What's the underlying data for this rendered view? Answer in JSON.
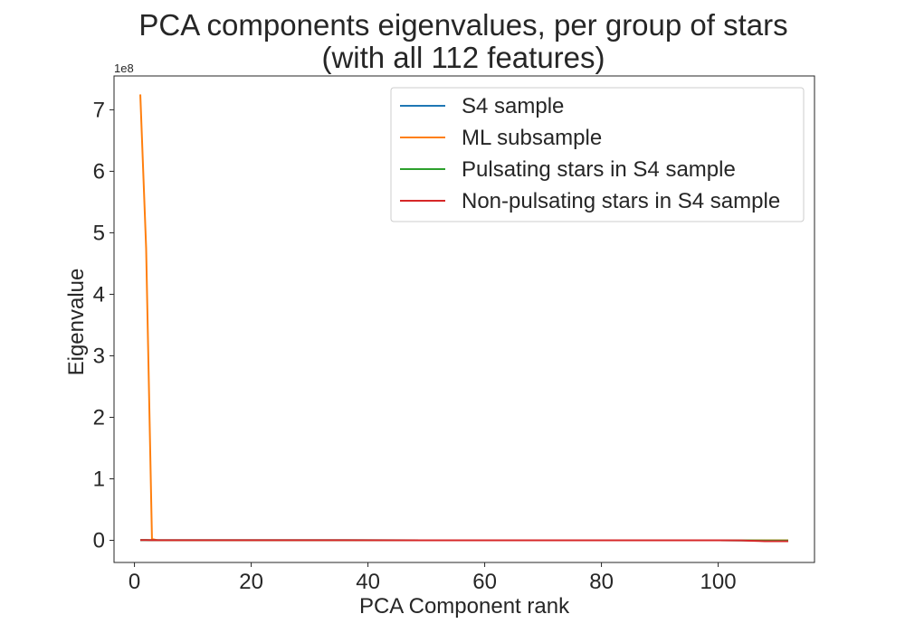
{
  "chart_data": {
    "type": "line",
    "title": [
      "PCA components eigenvalues, per group of stars",
      "(with all 112 features)"
    ],
    "xlabel": "PCA Component rank",
    "ylabel": "Eigenvalue",
    "y_offset_text": "1e8",
    "xlim": [
      -3.5,
      116.5
    ],
    "ylim": [
      -0.36,
      7.55
    ],
    "xticks": [
      0,
      20,
      40,
      60,
      80,
      100
    ],
    "xtick_labels": [
      "0",
      "20",
      "40",
      "60",
      "80",
      "100"
    ],
    "yticks": [
      0,
      1,
      2,
      3,
      4,
      5,
      6,
      7
    ],
    "ytick_labels": [
      "0",
      "1",
      "2",
      "3",
      "4",
      "5",
      "6",
      "7"
    ],
    "grid": false,
    "legend_position": "upper right",
    "series": [
      {
        "name": "S4 sample",
        "color": "#1f77b4",
        "x": [
          1,
          2,
          3,
          50,
          100,
          104,
          105,
          108,
          112
        ],
        "y": [
          0.004,
          0.003,
          0.002,
          0.001,
          0.0,
          -0.001,
          -0.002,
          -0.003,
          -0.004
        ]
      },
      {
        "name": "ML subsample",
        "color": "#ff7f0e",
        "x": [
          1,
          2,
          3,
          4,
          50,
          112
        ],
        "y": [
          7.25,
          4.75,
          0.02,
          0.0,
          0.0,
          0.0
        ]
      },
      {
        "name": "Pulsating stars in S4 sample",
        "color": "#2ca02c",
        "x": [
          1,
          2,
          3,
          50,
          100,
          104,
          105,
          108,
          112
        ],
        "y": [
          0.004,
          0.003,
          0.002,
          0.001,
          0.0,
          -0.001,
          -0.002,
          -0.003,
          -0.004
        ]
      },
      {
        "name": "Non-pulsating stars in S4 sample",
        "color": "#d62728",
        "x": [
          1,
          2,
          3,
          50,
          100,
          104,
          105,
          107,
          108,
          112
        ],
        "y": [
          0.004,
          0.003,
          0.002,
          0.001,
          0.0,
          -0.001,
          -0.005,
          -0.01,
          -0.015,
          -0.015
        ]
      }
    ]
  }
}
